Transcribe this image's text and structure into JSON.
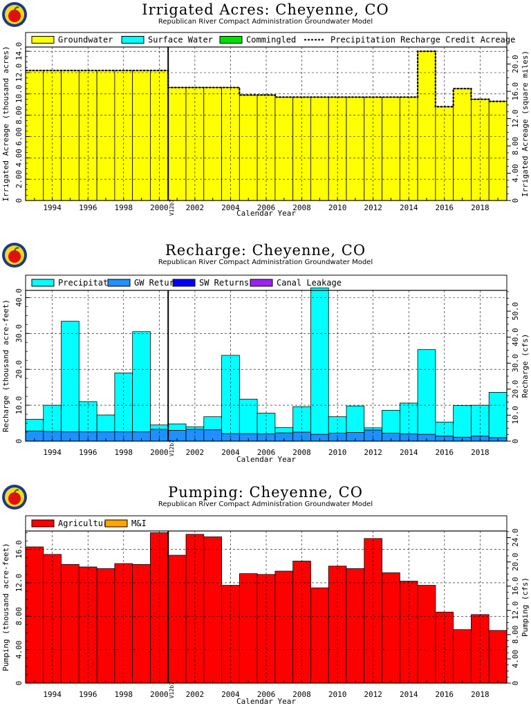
{
  "charts": [
    {
      "id": "irr",
      "title": "Irrigated Acres: Cheyenne, CO",
      "subtitle": "Republican River Compact Administration Groundwater Model",
      "chart_index": 0
    },
    {
      "id": "rech",
      "title": "Recharge: Cheyenne, CO",
      "subtitle": "Republican River Compact Administration Groundwater Model",
      "chart_index": 1
    },
    {
      "id": "pump",
      "title": "Pumping: Cheyenne, CO",
      "subtitle": "Republican River Compact Administration Groundwater Model",
      "chart_index": 2
    }
  ],
  "colors": {
    "groundwater": "#ffff00",
    "surface_water": "#00ffff",
    "commingled": "#00e000",
    "precipitation": "#00ffff",
    "gw_returns": "#1e90ff",
    "sw_returns": "#0000ff",
    "canal_leakage": "#a020f0",
    "agricultural": "#ff0000",
    "mi": "#ffa500"
  },
  "chart_data": [
    {
      "type": "bar",
      "title": "Irrigated Acres: Cheyenne, CO",
      "subtitle": "Republican River Compact Administration Groundwater Model",
      "xlabel": "Calendar Year",
      "ylabel": "Irrigated Acreage (thousand acres)",
      "y2label": "Irrigated Acreage (square miles)",
      "xlim": [
        1992.5,
        2019.5
      ],
      "ylim": [
        0,
        14.4
      ],
      "y2lim": [
        0,
        22.5
      ],
      "yticks": [
        "0",
        "2.00",
        "4.00",
        "6.00",
        "8.00",
        "10.0",
        "12.0",
        "14.0"
      ],
      "y2ticks": [
        "0",
        "4.00",
        "8.00",
        "12.0",
        "16.0",
        "20.0"
      ],
      "xticks": [
        "1994",
        "1996",
        "1998",
        "2000",
        "2002",
        "2004",
        "2006",
        "2008",
        "2010",
        "2012",
        "2014",
        "2016",
        "2018"
      ],
      "marker": {
        "x": 2000.5,
        "label": "V12b7"
      },
      "legend": [
        {
          "label": "Groundwater",
          "color_key": "groundwater",
          "kind": "box"
        },
        {
          "label": "Surface Water",
          "color_key": "surface_water",
          "kind": "box"
        },
        {
          "label": "Commingled",
          "color_key": "commingled",
          "kind": "box"
        },
        {
          "label": "Precipitation Recharge Credit Acreage",
          "kind": "dash"
        }
      ],
      "legend_placement": "top",
      "grid": true,
      "years": [
        1993,
        1994,
        1995,
        1996,
        1997,
        1998,
        1999,
        2000,
        2001,
        2002,
        2003,
        2004,
        2005,
        2006,
        2007,
        2008,
        2009,
        2010,
        2011,
        2012,
        2013,
        2014,
        2015,
        2016,
        2017,
        2018,
        2019
      ],
      "series": [
        {
          "name": "Groundwater",
          "color_key": "groundwater",
          "values": [
            12.2,
            12.2,
            12.2,
            12.2,
            12.2,
            12.2,
            12.2,
            12.2,
            10.6,
            10.6,
            10.6,
            10.6,
            9.9,
            9.9,
            9.7,
            9.7,
            9.7,
            9.7,
            9.7,
            9.7,
            9.7,
            9.7,
            14.0,
            8.8,
            10.5,
            9.5,
            9.3
          ]
        }
      ],
      "credit_line": [
        12.2,
        12.2,
        12.2,
        12.2,
        12.2,
        12.2,
        12.2,
        12.2,
        10.6,
        10.6,
        10.6,
        10.6,
        9.9,
        9.9,
        9.7,
        9.7,
        9.7,
        9.7,
        9.7,
        9.7,
        9.7,
        9.7,
        14.0,
        8.8,
        10.5,
        9.5,
        9.3
      ]
    },
    {
      "type": "bar",
      "title": "Recharge: Cheyenne, CO",
      "subtitle": "Republican River Compact Administration Groundwater Model",
      "xlabel": "Calendar Year",
      "ylabel": "Recharge (thousand acre-feet)",
      "y2label": "Recharge (cfs)",
      "xlim": [
        1992.5,
        2019.5
      ],
      "ylim": [
        0,
        42
      ],
      "y2lim": [
        0,
        58
      ],
      "yticks": [
        "0",
        "10.0",
        "20.0",
        "30.0",
        "40.0"
      ],
      "y2ticks": [
        "0",
        "10.0",
        "20.0",
        "30.0",
        "40.0",
        "50.0"
      ],
      "xticks": [
        "1994",
        "1996",
        "1998",
        "2000",
        "2002",
        "2004",
        "2006",
        "2008",
        "2010",
        "2012",
        "2014",
        "2016",
        "2018"
      ],
      "marker": {
        "x": 2000.5,
        "label": "V12b7"
      },
      "legend": [
        {
          "label": "Precipitation",
          "color_key": "precipitation",
          "kind": "box"
        },
        {
          "label": "GW Returns",
          "color_key": "gw_returns",
          "kind": "box"
        },
        {
          "label": "SW Returns",
          "color_key": "sw_returns",
          "kind": "box"
        },
        {
          "label": "Canal Leakage",
          "color_key": "canal_leakage",
          "kind": "box"
        }
      ],
      "legend_placement": "top",
      "grid": true,
      "years": [
        1993,
        1994,
        1995,
        1996,
        1997,
        1998,
        1999,
        2000,
        2001,
        2002,
        2003,
        2004,
        2005,
        2006,
        2007,
        2008,
        2009,
        2010,
        2011,
        2012,
        2013,
        2014,
        2015,
        2016,
        2017,
        2018,
        2019
      ],
      "series": [
        {
          "name": "GW Returns",
          "color_key": "gw_returns",
          "values": [
            2.8,
            2.7,
            2.6,
            2.6,
            2.6,
            2.6,
            2.6,
            3.3,
            3.0,
            3.3,
            3.2,
            2.1,
            2.1,
            2.0,
            2.3,
            2.5,
            1.9,
            2.2,
            2.4,
            3.1,
            2.2,
            2.0,
            1.9,
            1.4,
            1.1,
            1.4,
            1.0
          ]
        },
        {
          "name": "Precipitation",
          "color_key": "precipitation",
          "values": [
            3.3,
            7.3,
            30.8,
            8.4,
            4.7,
            16.4,
            27.9,
            1.2,
            1.8,
            0.7,
            3.6,
            21.8,
            9.6,
            5.8,
            1.5,
            7.1,
            40.8,
            4.6,
            7.4,
            0.6,
            6.4,
            8.6,
            23.6,
            3.9,
            8.8,
            8.6,
            12.6
          ]
        }
      ]
    },
    {
      "type": "bar",
      "title": "Pumping: Cheyenne, CO",
      "subtitle": "Republican River Compact Administration Groundwater Model",
      "xlabel": "Calendar Year",
      "ylabel": "Pumping (thousand acre-feet)",
      "y2label": "Pumping (cfs)",
      "xlim": [
        1992.5,
        2019.5
      ],
      "ylim": [
        0,
        18.2
      ],
      "y2lim": [
        0,
        25.1
      ],
      "yticks": [
        "0",
        "4.00",
        "8.00",
        "12.0",
        "16.0"
      ],
      "y2ticks": [
        "0",
        "4.00",
        "8.00",
        "12.0",
        "16.0",
        "20.0",
        "24.0"
      ],
      "xticks": [
        "1994",
        "1996",
        "1998",
        "2000",
        "2002",
        "2004",
        "2006",
        "2008",
        "2010",
        "2012",
        "2014",
        "2016",
        "2018"
      ],
      "marker": {
        "x": 2000.5,
        "label": "V12b7"
      },
      "legend": [
        {
          "label": "Agricultural",
          "color_key": "agricultural",
          "kind": "box"
        },
        {
          "label": "M&I",
          "color_key": "mi",
          "kind": "box"
        }
      ],
      "legend_placement": "top",
      "grid": true,
      "years": [
        1993,
        1994,
        1995,
        1996,
        1997,
        1998,
        1999,
        2000,
        2001,
        2002,
        2003,
        2004,
        2005,
        2006,
        2007,
        2008,
        2009,
        2010,
        2011,
        2012,
        2013,
        2014,
        2015,
        2016,
        2017,
        2018,
        2019
      ],
      "series": [
        {
          "name": "Agricultural",
          "color_key": "agricultural",
          "values": [
            16.3,
            15.4,
            14.2,
            13.9,
            13.7,
            14.3,
            14.2,
            18.0,
            15.3,
            17.8,
            17.5,
            11.7,
            13.1,
            13.0,
            13.4,
            14.6,
            11.4,
            14.0,
            13.7,
            17.3,
            13.2,
            12.2,
            11.7,
            8.5,
            6.4,
            8.2,
            6.3
          ]
        }
      ]
    }
  ]
}
